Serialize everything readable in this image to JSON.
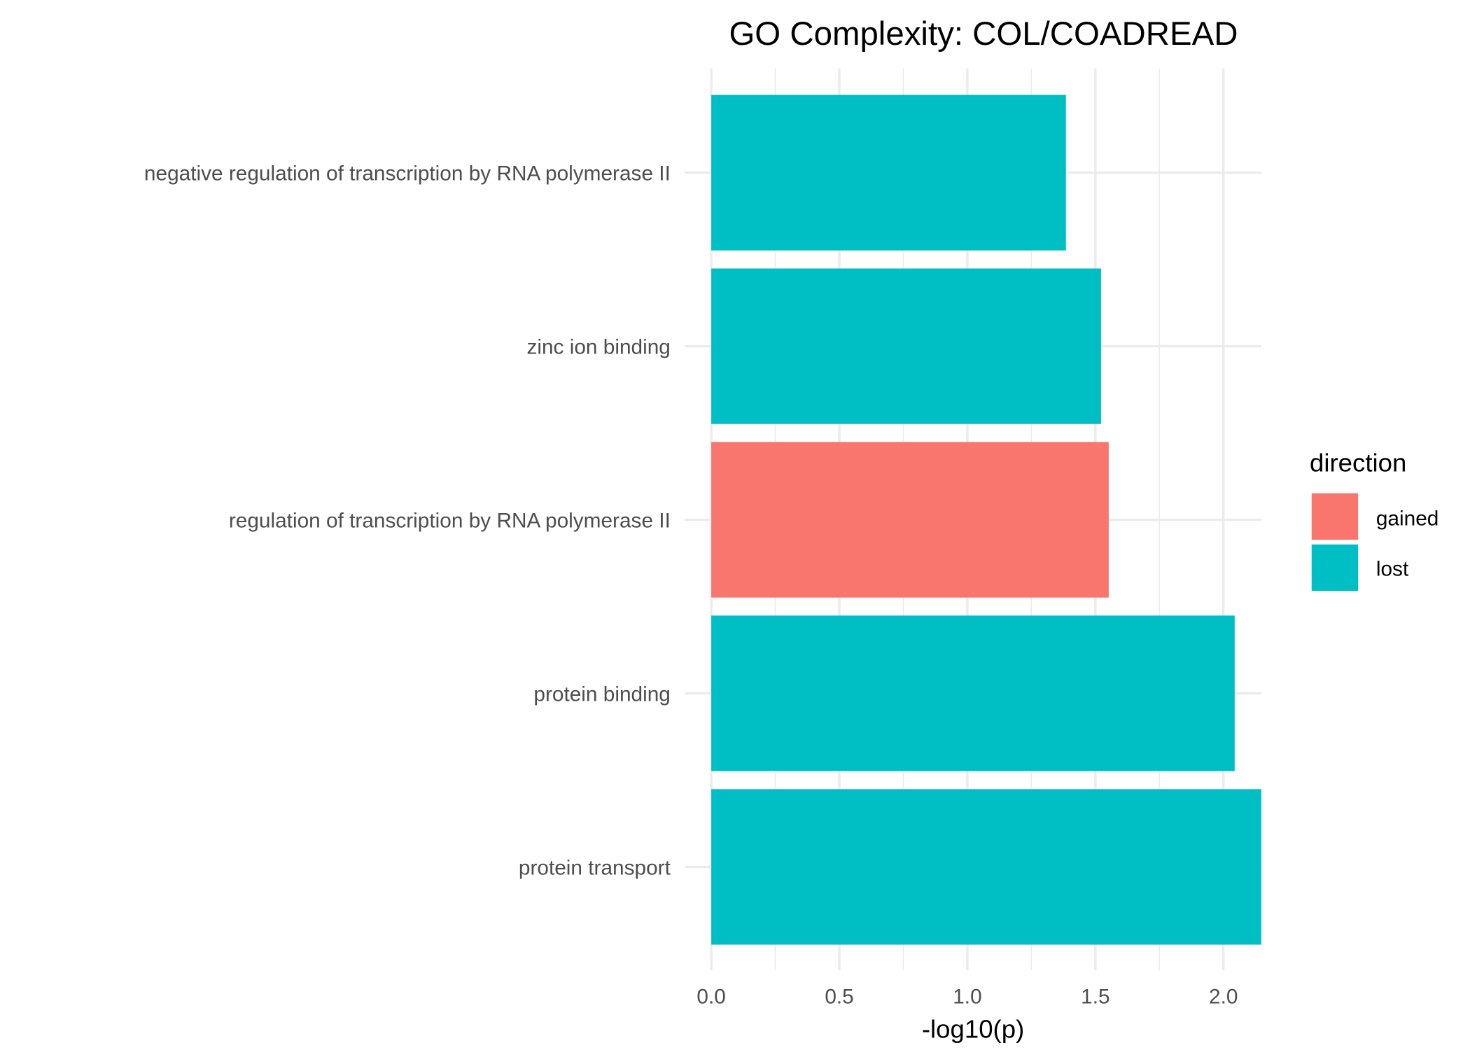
{
  "chart_data": {
    "type": "bar",
    "orientation": "horizontal",
    "title": "GO Complexity: COL/COADREAD",
    "xlabel": "-log10(p)",
    "ylabel": "",
    "categories": [
      "negative regulation of transcription by RNA polymerase II",
      "zinc ion binding",
      "regulation of transcription by RNA polymerase II",
      "protein binding",
      "protein transport"
    ],
    "values": [
      1.385,
      1.522,
      1.552,
      2.044,
      2.148
    ],
    "direction": [
      "lost",
      "lost",
      "gained",
      "lost",
      "lost"
    ],
    "xlim": [
      0,
      2.148
    ],
    "xticks": [
      "0.0",
      "0.5",
      "1.0",
      "1.5",
      "2.0"
    ],
    "xtick_values": [
      0,
      0.5,
      1.0,
      1.5,
      2.0
    ],
    "grid": true,
    "legend": {
      "title": "direction",
      "placement": "right",
      "entries": [
        {
          "label": "gained",
          "color": "#F8766D"
        },
        {
          "label": "lost",
          "color": "#00BFC4"
        }
      ]
    }
  }
}
